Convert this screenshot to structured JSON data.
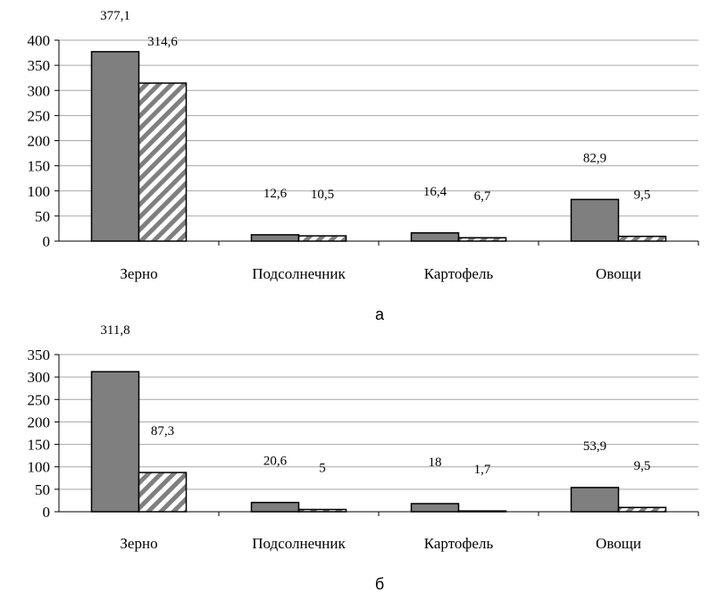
{
  "chart_data": [
    {
      "type": "bar",
      "title": "",
      "panel_label": "а",
      "categories": [
        "Зерно",
        "Подсолнечник",
        "Картофель",
        "Овощи"
      ],
      "series": [
        {
          "values": [
            377.1,
            12.6,
            16.4,
            82.9
          ],
          "labels": [
            "377,1",
            "12,6",
            "16,4",
            "82,9"
          ],
          "style": "solid",
          "color": "#7f7f7f"
        },
        {
          "values": [
            314.6,
            10.5,
            6.7,
            9.5
          ],
          "labels": [
            "314,6",
            "10,5",
            "6,7",
            "9,5"
          ],
          "style": "hatched",
          "color": "#7f7f7f"
        }
      ],
      "ylim": [
        0,
        400
      ],
      "yticks": [
        0,
        50,
        100,
        150,
        200,
        250,
        300,
        350,
        400
      ],
      "grid": true
    },
    {
      "type": "bar",
      "title": "",
      "panel_label": "б",
      "categories": [
        "Зерно",
        "Подсолнечник",
        "Картофель",
        "Овощи"
      ],
      "series": [
        {
          "values": [
            311.8,
            20.6,
            18,
            53.9
          ],
          "labels": [
            "311,8",
            "20,6",
            "18",
            "53,9"
          ],
          "style": "solid",
          "color": "#7f7f7f"
        },
        {
          "values": [
            87.3,
            5,
            1.7,
            9.5
          ],
          "labels": [
            "87,3",
            "5",
            "1,7",
            "9,5"
          ],
          "style": "hatched",
          "color": "#7f7f7f"
        }
      ],
      "ylim": [
        0,
        350
      ],
      "yticks": [
        0,
        50,
        100,
        150,
        200,
        250,
        300,
        350
      ],
      "grid": true
    }
  ]
}
